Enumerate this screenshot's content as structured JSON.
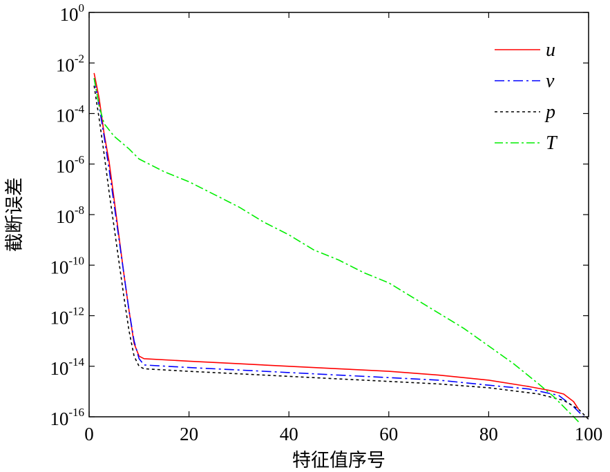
{
  "chart_data": {
    "type": "line",
    "title": "",
    "xlabel": "特征值序号",
    "ylabel": "截断误差",
    "xlim": [
      0,
      100
    ],
    "ylim_log10": [
      -16,
      0
    ],
    "yscale": "log",
    "x_ticks": [
      0,
      20,
      40,
      60,
      80,
      100
    ],
    "x_tick_labels": [
      "0",
      "20",
      "40",
      "60",
      "80",
      "100"
    ],
    "y_ticks": [
      {
        "base": "10",
        "exp": "0"
      },
      {
        "base": "10",
        "exp": "-2"
      },
      {
        "base": "10",
        "exp": "-4"
      },
      {
        "base": "10",
        "exp": "-6"
      },
      {
        "base": "10",
        "exp": "-8"
      },
      {
        "base": "10",
        "exp": "-10"
      },
      {
        "base": "10",
        "exp": "-12"
      },
      {
        "base": "10",
        "exp": "-14"
      },
      {
        "base": "10",
        "exp": "-16"
      }
    ],
    "legend_position": "top-right",
    "series": [
      {
        "name": "u",
        "color": "#ff0000",
        "dash": "solid",
        "points": [
          [
            1,
            -2.4
          ],
          [
            2,
            -3.4
          ],
          [
            3,
            -4.8
          ],
          [
            4,
            -5.9
          ],
          [
            5,
            -7.4
          ],
          [
            6,
            -8.9
          ],
          [
            7,
            -10.4
          ],
          [
            8,
            -11.8
          ],
          [
            9,
            -13.1
          ],
          [
            10,
            -13.6
          ],
          [
            11,
            -13.7
          ],
          [
            20,
            -13.8
          ],
          [
            30,
            -13.9
          ],
          [
            40,
            -14.0
          ],
          [
            50,
            -14.1
          ],
          [
            60,
            -14.2
          ],
          [
            70,
            -14.35
          ],
          [
            80,
            -14.55
          ],
          [
            88,
            -14.8
          ],
          [
            92,
            -14.95
          ],
          [
            95,
            -15.1
          ],
          [
            97,
            -15.4
          ],
          [
            98,
            -15.7
          ]
        ]
      },
      {
        "name": "v",
        "color": "#0000ff",
        "dash": "14,5,3,5",
        "points": [
          [
            1,
            -2.6
          ],
          [
            2,
            -3.7
          ],
          [
            3,
            -4.9
          ],
          [
            4,
            -6.2
          ],
          [
            5,
            -7.6
          ],
          [
            6,
            -9.0
          ],
          [
            7,
            -10.4
          ],
          [
            8,
            -11.8
          ],
          [
            9,
            -13.0
          ],
          [
            10,
            -13.7
          ],
          [
            11,
            -13.95
          ],
          [
            20,
            -14.05
          ],
          [
            30,
            -14.15
          ],
          [
            40,
            -14.25
          ],
          [
            50,
            -14.35
          ],
          [
            60,
            -14.45
          ],
          [
            70,
            -14.55
          ],
          [
            80,
            -14.75
          ],
          [
            88,
            -14.9
          ],
          [
            94,
            -15.15
          ],
          [
            97,
            -15.6
          ],
          [
            99,
            -16.0
          ]
        ]
      },
      {
        "name": "p",
        "color": "#000000",
        "dash": "4,4",
        "points": [
          [
            1,
            -2.9
          ],
          [
            2,
            -4.2
          ],
          [
            3,
            -5.6
          ],
          [
            4,
            -7.1
          ],
          [
            5,
            -8.5
          ],
          [
            6,
            -9.9
          ],
          [
            7,
            -11.3
          ],
          [
            8,
            -12.6
          ],
          [
            9,
            -13.6
          ],
          [
            10,
            -14.0
          ],
          [
            11,
            -14.1
          ],
          [
            20,
            -14.2
          ],
          [
            30,
            -14.3
          ],
          [
            40,
            -14.4
          ],
          [
            50,
            -14.5
          ],
          [
            60,
            -14.6
          ],
          [
            70,
            -14.7
          ],
          [
            80,
            -14.85
          ],
          [
            90,
            -15.1
          ],
          [
            95,
            -15.35
          ],
          [
            98,
            -15.7
          ],
          [
            100,
            -16.1
          ]
        ]
      },
      {
        "name": "T",
        "color": "#00ee00",
        "dash": "12,4,3,4",
        "points": [
          [
            1,
            -2.6
          ],
          [
            2,
            -3.7
          ],
          [
            3,
            -4.4
          ],
          [
            5,
            -4.9
          ],
          [
            8,
            -5.4
          ],
          [
            10,
            -5.8
          ],
          [
            15,
            -6.3
          ],
          [
            20,
            -6.7
          ],
          [
            25,
            -7.2
          ],
          [
            30,
            -7.7
          ],
          [
            35,
            -8.3
          ],
          [
            40,
            -8.8
          ],
          [
            45,
            -9.4
          ],
          [
            50,
            -9.8
          ],
          [
            55,
            -10.3
          ],
          [
            60,
            -10.7
          ],
          [
            65,
            -11.3
          ],
          [
            70,
            -11.9
          ],
          [
            75,
            -12.5
          ],
          [
            80,
            -13.2
          ],
          [
            85,
            -13.9
          ],
          [
            90,
            -14.7
          ],
          [
            93,
            -15.2
          ],
          [
            96,
            -15.8
          ],
          [
            98,
            -16.2
          ]
        ]
      }
    ]
  }
}
